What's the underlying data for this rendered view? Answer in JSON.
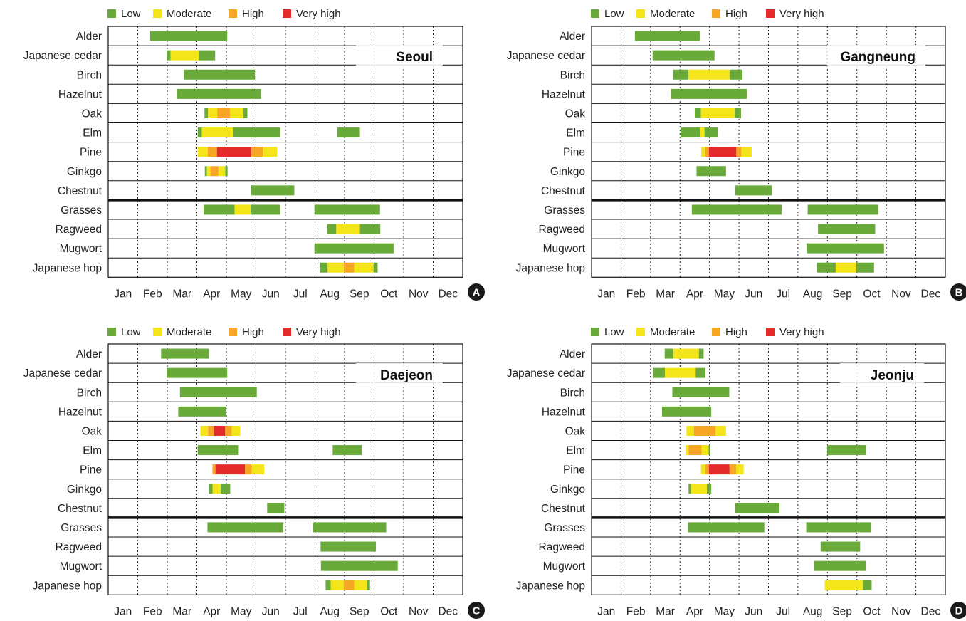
{
  "colors": {
    "Low": "#6aaa3a",
    "Moderate": "#f4e51a",
    "High": "#f7a524",
    "Very high": "#e32b2b"
  },
  "legend": [
    "Low",
    "Moderate",
    "High",
    "Very high"
  ],
  "months": [
    "Jan",
    "Feb",
    "Mar",
    "Apr",
    "May",
    "Jun",
    "Jul",
    "Aug",
    "Sep",
    "Oct",
    "Nov",
    "Dec"
  ],
  "species": [
    "Alder",
    "Japanese cedar",
    "Birch",
    "Hazelnut",
    "Oak",
    "Elm",
    "Pine",
    "Ginkgo",
    "Chestnut",
    "Grasses",
    "Ragweed",
    "Mugwort",
    "Japanese hop"
  ],
  "chart_data": [
    {
      "type": "bar",
      "panel": "A",
      "city": "Seoul",
      "xlabel": "",
      "ylabel": "",
      "xlim": [
        "Jan",
        "Dec"
      ],
      "segments": {
        "Alder": [
          [
            1.42,
            4.03,
            "Low"
          ]
        ],
        "Japanese cedar": [
          [
            1.98,
            2.11,
            "Low"
          ],
          [
            2.11,
            3.08,
            "Moderate"
          ],
          [
            3.08,
            3.62,
            "Low"
          ]
        ],
        "Birch": [
          [
            2.56,
            4.97,
            "Low"
          ]
        ],
        "Hazelnut": [
          [
            2.32,
            5.17,
            "Low"
          ]
        ],
        "Oak": [
          [
            3.26,
            3.38,
            "Low"
          ],
          [
            3.38,
            3.69,
            "Moderate"
          ],
          [
            3.69,
            4.12,
            "High"
          ],
          [
            4.12,
            4.58,
            "Moderate"
          ],
          [
            4.58,
            4.71,
            "Low"
          ]
        ],
        "Elm": [
          [
            3.03,
            3.17,
            "Low"
          ],
          [
            3.17,
            4.22,
            "Moderate"
          ],
          [
            4.22,
            5.82,
            "Low"
          ],
          [
            7.76,
            8.52,
            "Low"
          ]
        ],
        "Pine": [
          [
            3.03,
            3.37,
            "Moderate"
          ],
          [
            3.37,
            3.68,
            "High"
          ],
          [
            3.68,
            4.84,
            "Very high"
          ],
          [
            4.84,
            5.23,
            "High"
          ],
          [
            5.23,
            5.72,
            "Moderate"
          ]
        ],
        "Ginkgo": [
          [
            3.27,
            3.34,
            "Low"
          ],
          [
            3.34,
            3.46,
            "Moderate"
          ],
          [
            3.46,
            3.73,
            "High"
          ],
          [
            3.73,
            3.96,
            "Moderate"
          ],
          [
            3.96,
            4.04,
            "Low"
          ]
        ],
        "Chestnut": [
          [
            4.83,
            6.3,
            "Low"
          ]
        ],
        "Grasses": [
          [
            3.23,
            4.28,
            "Low"
          ],
          [
            4.28,
            4.82,
            "Moderate"
          ],
          [
            4.82,
            5.81,
            "Low"
          ],
          [
            6.98,
            9.2,
            "Low"
          ]
        ],
        "Ragweed": [
          [
            7.42,
            7.72,
            "Low"
          ],
          [
            7.72,
            8.52,
            "Moderate"
          ],
          [
            8.52,
            9.21,
            "Low"
          ]
        ],
        "Mugwort": [
          [
            6.98,
            9.66,
            "Low"
          ]
        ],
        "Japanese hop": [
          [
            7.18,
            7.43,
            "Low"
          ],
          [
            7.43,
            7.97,
            "Moderate"
          ],
          [
            7.97,
            8.33,
            "High"
          ],
          [
            8.33,
            8.98,
            "Moderate"
          ],
          [
            8.98,
            9.12,
            "Low"
          ]
        ]
      }
    },
    {
      "type": "bar",
      "panel": "B",
      "city": "Gangneung",
      "xlabel": "",
      "ylabel": "",
      "xlim": [
        "Jan",
        "Dec"
      ],
      "segments": {
        "Alder": [
          [
            1.47,
            3.68,
            "Low"
          ]
        ],
        "Japanese cedar": [
          [
            2.07,
            4.17,
            "Low"
          ]
        ],
        "Birch": [
          [
            2.77,
            3.28,
            "Low"
          ],
          [
            3.28,
            4.68,
            "Moderate"
          ],
          [
            4.68,
            5.12,
            "Low"
          ]
        ],
        "Hazelnut": [
          [
            2.69,
            5.27,
            "Low"
          ]
        ],
        "Oak": [
          [
            3.5,
            3.71,
            "Low"
          ],
          [
            3.71,
            4.86,
            "Moderate"
          ],
          [
            4.86,
            5.07,
            "Low"
          ]
        ],
        "Elm": [
          [
            3.02,
            3.68,
            "Low"
          ],
          [
            3.68,
            3.83,
            "Moderate"
          ],
          [
            3.83,
            4.28,
            "Low"
          ]
        ],
        "Pine": [
          [
            3.72,
            3.86,
            "Moderate"
          ],
          [
            3.86,
            3.98,
            "High"
          ],
          [
            3.98,
            4.91,
            "Very high"
          ],
          [
            4.91,
            5.08,
            "High"
          ],
          [
            5.08,
            5.43,
            "Moderate"
          ]
        ],
        "Ginkgo": [
          [
            3.56,
            4.56,
            "Low"
          ]
        ],
        "Chestnut": [
          [
            4.87,
            6.12,
            "Low"
          ]
        ],
        "Grasses": [
          [
            3.4,
            6.45,
            "Low"
          ],
          [
            7.33,
            9.72,
            "Low"
          ]
        ],
        "Ragweed": [
          [
            7.68,
            9.62,
            "Low"
          ]
        ],
        "Mugwort": [
          [
            7.29,
            9.92,
            "Low"
          ]
        ],
        "Japanese hop": [
          [
            7.63,
            8.28,
            "Low"
          ],
          [
            8.28,
            8.98,
            "Moderate"
          ],
          [
            8.98,
            9.58,
            "Low"
          ]
        ]
      }
    },
    {
      "type": "bar",
      "panel": "C",
      "city": "Daejeon",
      "xlabel": "",
      "ylabel": "",
      "xlim": [
        "Jan",
        "Dec"
      ],
      "segments": {
        "Alder": [
          [
            1.79,
            3.42,
            "Low"
          ]
        ],
        "Japanese cedar": [
          [
            1.98,
            4.03,
            "Low"
          ]
        ],
        "Birch": [
          [
            2.43,
            5.03,
            "Low"
          ]
        ],
        "Hazelnut": [
          [
            2.37,
            3.99,
            "Low"
          ]
        ],
        "Oak": [
          [
            3.12,
            3.38,
            "Moderate"
          ],
          [
            3.38,
            3.58,
            "High"
          ],
          [
            3.58,
            3.96,
            "Very high"
          ],
          [
            3.96,
            4.18,
            "High"
          ],
          [
            4.18,
            4.47,
            "Moderate"
          ]
        ],
        "Elm": [
          [
            3.03,
            4.42,
            "Low"
          ],
          [
            7.6,
            8.58,
            "Low"
          ]
        ],
        "Pine": [
          [
            3.53,
            3.63,
            "High"
          ],
          [
            3.63,
            4.63,
            "Very high"
          ],
          [
            4.63,
            4.86,
            "High"
          ],
          [
            4.86,
            5.28,
            "Moderate"
          ]
        ],
        "Ginkgo": [
          [
            3.4,
            3.53,
            "Low"
          ],
          [
            3.53,
            3.81,
            "Moderate"
          ],
          [
            3.81,
            4.13,
            "Low"
          ]
        ],
        "Chestnut": [
          [
            5.38,
            5.96,
            "Low"
          ]
        ],
        "Grasses": [
          [
            3.36,
            5.93,
            "Low"
          ],
          [
            6.92,
            9.41,
            "Low"
          ]
        ],
        "Ragweed": [
          [
            7.19,
            9.06,
            "Low"
          ]
        ],
        "Mugwort": [
          [
            7.2,
            9.8,
            "Low"
          ]
        ],
        "Japanese hop": [
          [
            7.36,
            7.53,
            "Low"
          ],
          [
            7.53,
            7.97,
            "Moderate"
          ],
          [
            7.97,
            8.33,
            "High"
          ],
          [
            8.33,
            8.76,
            "Moderate"
          ],
          [
            8.76,
            8.86,
            "Low"
          ]
        ]
      }
    },
    {
      "type": "bar",
      "panel": "D",
      "city": "Jeonju",
      "xlabel": "",
      "ylabel": "",
      "xlim": [
        "Jan",
        "Dec"
      ],
      "segments": {
        "Alder": [
          [
            2.48,
            2.78,
            "Low"
          ],
          [
            2.78,
            3.64,
            "Moderate"
          ],
          [
            3.64,
            3.8,
            "Low"
          ]
        ],
        "Japanese cedar": [
          [
            2.1,
            2.49,
            "Low"
          ],
          [
            2.49,
            3.53,
            "Moderate"
          ],
          [
            3.53,
            3.86,
            "Low"
          ]
        ],
        "Birch": [
          [
            2.74,
            4.67,
            "Low"
          ]
        ],
        "Hazelnut": [
          [
            2.39,
            4.06,
            "Low"
          ]
        ],
        "Oak": [
          [
            3.22,
            3.47,
            "Moderate"
          ],
          [
            3.47,
            4.21,
            "High"
          ],
          [
            4.21,
            4.56,
            "Moderate"
          ]
        ],
        "Elm": [
          [
            3.19,
            3.29,
            "Moderate"
          ],
          [
            3.29,
            3.73,
            "High"
          ],
          [
            3.73,
            3.97,
            "Moderate"
          ],
          [
            3.97,
            4.03,
            "Low"
          ],
          [
            7.99,
            9.31,
            "Low"
          ]
        ],
        "Pine": [
          [
            3.71,
            3.86,
            "Moderate"
          ],
          [
            3.86,
            3.98,
            "High"
          ],
          [
            3.98,
            4.68,
            "Very high"
          ],
          [
            4.68,
            4.91,
            "High"
          ],
          [
            4.91,
            5.16,
            "Moderate"
          ]
        ],
        "Ginkgo": [
          [
            3.29,
            3.37,
            "Low"
          ],
          [
            3.37,
            3.91,
            "Moderate"
          ],
          [
            3.91,
            4.06,
            "Low"
          ]
        ],
        "Chestnut": [
          [
            4.87,
            6.37,
            "Low"
          ]
        ],
        "Grasses": [
          [
            3.27,
            5.86,
            "Low"
          ],
          [
            7.28,
            9.49,
            "Low"
          ]
        ],
        "Ragweed": [
          [
            7.77,
            9.11,
            "Low"
          ]
        ],
        "Mugwort": [
          [
            7.55,
            9.3,
            "Low"
          ]
        ],
        "Japanese hop": [
          [
            7.91,
            8.06,
            "Moderate"
          ],
          [
            8.06,
            9.21,
            "Moderate"
          ],
          [
            9.21,
            9.5,
            "Low"
          ]
        ]
      }
    }
  ]
}
